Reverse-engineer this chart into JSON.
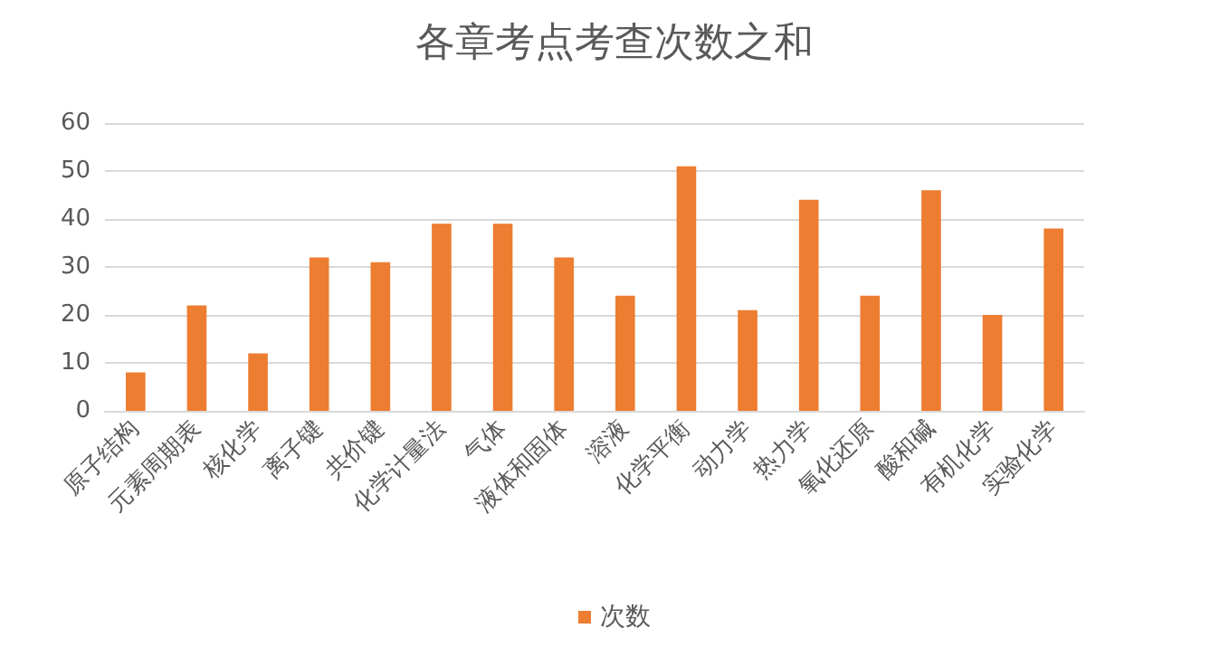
{
  "chart_data": {
    "type": "bar",
    "title": "各章考点考查次数之和",
    "categories": [
      "原子结构",
      "元素周期表",
      "核化学",
      "离子键",
      "共价键",
      "化学计量法",
      "气体",
      "液体和固体",
      "溶液",
      "化学平衡",
      "动力学",
      "热力学",
      "氧化还原",
      "酸和碱",
      "有机化学",
      "实验化学"
    ],
    "series": [
      {
        "name": "次数",
        "color": "#ed7d31",
        "values": [
          8,
          22,
          12,
          32,
          31,
          39,
          39,
          32,
          24,
          51,
          21,
          44,
          24,
          46,
          20,
          38
        ]
      }
    ],
    "ylim": [
      0,
      60
    ],
    "yticks": [
      0,
      10,
      20,
      30,
      40,
      50,
      60
    ],
    "grid": "y",
    "legend": "bottom"
  }
}
